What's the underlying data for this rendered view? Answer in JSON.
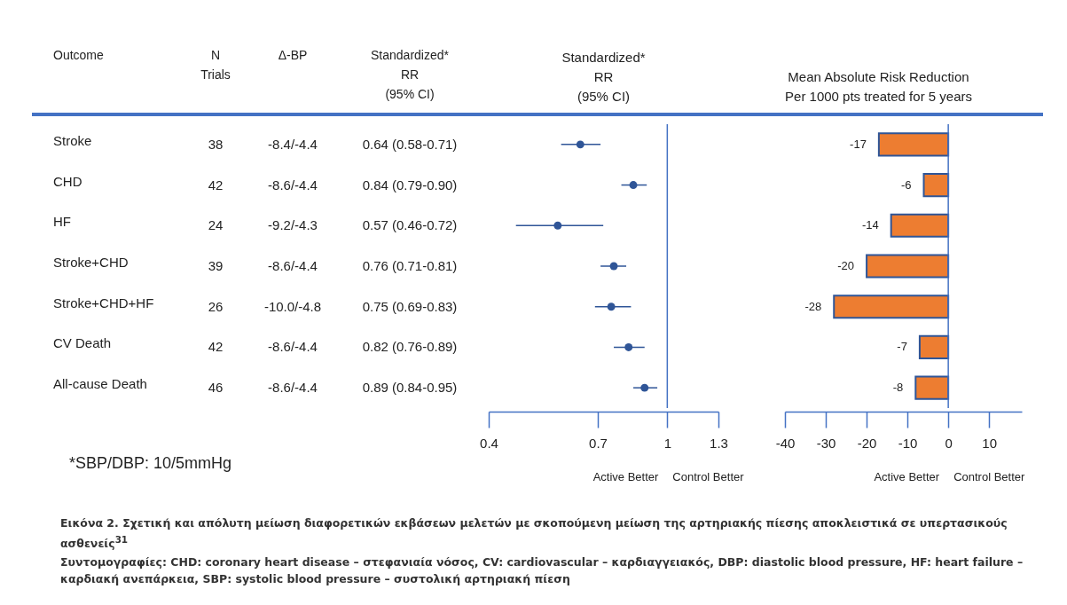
{
  "chart_data": [
    {
      "type": "other",
      "ylabel": "Outcome",
      "categories": [
        "N\nTrials",
        "Δ-BP",
        "Standardized*\nRR\n(95% CI)"
      ],
      "y_categories": [
        "Stroke",
        "CHD",
        "HF",
        "Stroke+CHD",
        "Stroke+CHD+HF",
        "CV Death",
        "All-cause Death"
      ],
      "cell_labels": [
        [
          "38",
          "-8.4/-4.4",
          "0.64 (0.58-0.71)"
        ],
        [
          "42",
          "-8.6/-4.4",
          "0.84 (0.79-0.90)"
        ],
        [
          "24",
          "-9.2/-4.3",
          "0.57 (0.46-0.72)"
        ],
        [
          "39",
          "-8.6/-4.4",
          "0.76 (0.71-0.81)"
        ],
        [
          "26",
          "-10.0/-4.8",
          "0.75 (0.69-0.83)"
        ],
        [
          "42",
          "-8.6/-4.4",
          "0.82 (0.76-0.89)"
        ],
        [
          "46",
          "-8.6/-4.4",
          "0.89 (0.84-0.95)"
        ]
      ],
      "annotations": [
        "*SBP/DBP: 10/5mmHg",
        "Εικόνα 2. Σχετική και απόλυτη μείωση διαφορετικών εκβάσεων μελετών με σκοπούμενη μείωση της αρτηριακής πίεσης αποκλειστικά σε υπερτασικούς ασθενείς$^{31}$",
        "Συντομογραφίες: CHD: coronary heart disease – στεφανιαία νόσος, CV: cardiovascular – καρδιαγγειακός, DBP: diastolic blood pressure, HF: heart failure – καρδιακή ανεπάρκεια, SBP: systolic blood pressure – συστολική αρτηριακή πίεση"
      ]
    },
    {
      "type": "scatter",
      "orientation": "horizontal",
      "title": "Standardized*\nRR\n(95% CI)",
      "categories": [
        null,
        null,
        null,
        null,
        null,
        null,
        null
      ],
      "values": [
        0.64,
        0.84,
        0.57,
        0.76,
        0.75,
        0.82,
        0.89
      ],
      "errors": [
        [
          0.58,
          0.71
        ],
        [
          0.79,
          0.9
        ],
        [
          0.46,
          0.72
        ],
        [
          0.71,
          0.81
        ],
        [
          0.69,
          0.83
        ],
        [
          0.76,
          0.89
        ],
        [
          0.84,
          0.95
        ]
      ],
      "color": "#2f5597",
      "marker": "circle",
      "log": "x",
      "xlim": [
        0.4,
        1.3
      ],
      "xticks": [
        0.4,
        0.7,
        1,
        1.3
      ],
      "ref_lines": [
        {
          "axis": "x",
          "value": 1,
          "color": "#4472c4"
        }
      ],
      "annotations": [
        "Active Better",
        "Control Better"
      ]
    },
    {
      "type": "bar",
      "orientation": "horizontal",
      "title": "Mean Absolute Risk Reduction\nPer 1000 pts treated for 5 years",
      "categories": [
        null,
        null,
        null,
        null,
        null,
        null,
        null
      ],
      "values": [
        -17,
        -6,
        -14,
        -20,
        -28,
        -7,
        -8
      ],
      "color": "#ed7d31",
      "data_labels": true,
      "xlim": [
        -40,
        18
      ],
      "xticks": [
        -40,
        -30,
        -20,
        -10,
        0,
        10
      ],
      "ref_lines": [
        {
          "axis": "x",
          "value": 0,
          "color": "#4472c4"
        }
      ],
      "annotations": [
        "Active Better",
        "Control Better"
      ]
    }
  ]
}
